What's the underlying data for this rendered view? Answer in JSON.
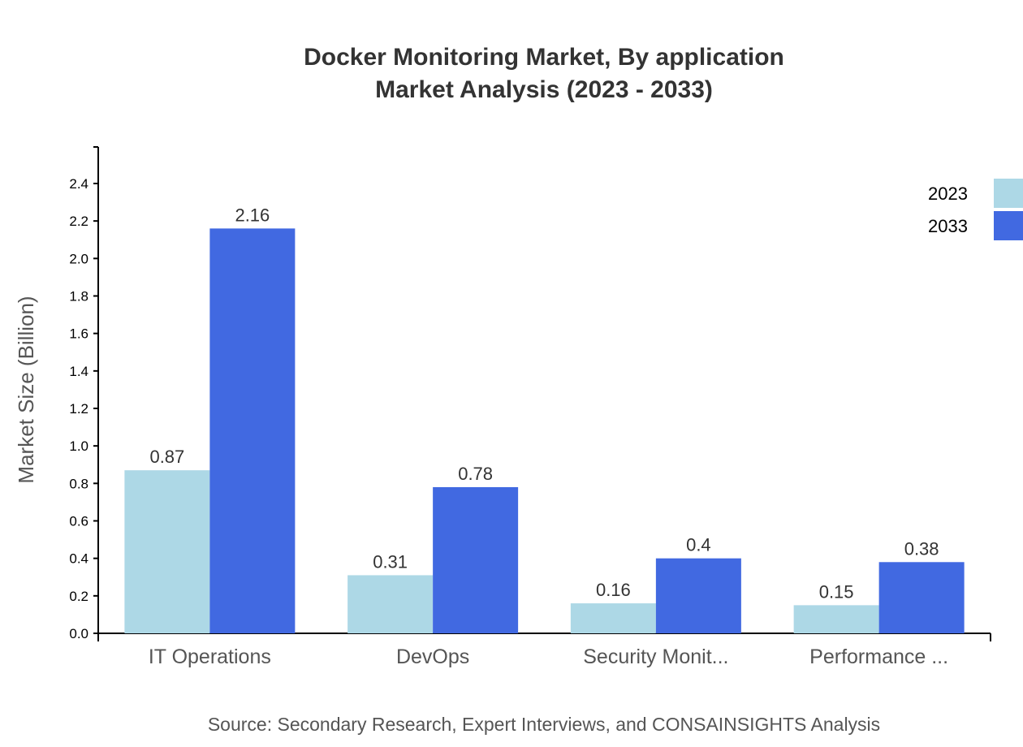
{
  "chart_data": {
    "type": "bar",
    "title": "Docker Monitoring Market, By application",
    "subtitle": "Market Analysis (2023 - 2033)",
    "xlabel": "",
    "ylabel": "Market Size (Billion)",
    "categories": [
      "IT Operations",
      "DevOps",
      "Security Monit...",
      "Performance ..."
    ],
    "series": [
      {
        "name": "2023",
        "color": "#add8e6",
        "values": [
          0.87,
          0.31,
          0.16,
          0.15
        ]
      },
      {
        "name": "2033",
        "color": "#4169e1",
        "values": [
          2.16,
          0.78,
          0.4,
          0.38
        ]
      }
    ],
    "yticks": [
      "0.0",
      "0.2",
      "0.4",
      "0.6",
      "0.8",
      "1.0",
      "1.2",
      "1.4",
      "1.6",
      "1.8",
      "2.0",
      "2.2",
      "2.4"
    ],
    "ylim": [
      0,
      2.6
    ],
    "grid": false,
    "legend": "top-right",
    "source": "Source: Secondary Research, Expert Interviews, and CONSAINSIGHTS Analysis"
  }
}
